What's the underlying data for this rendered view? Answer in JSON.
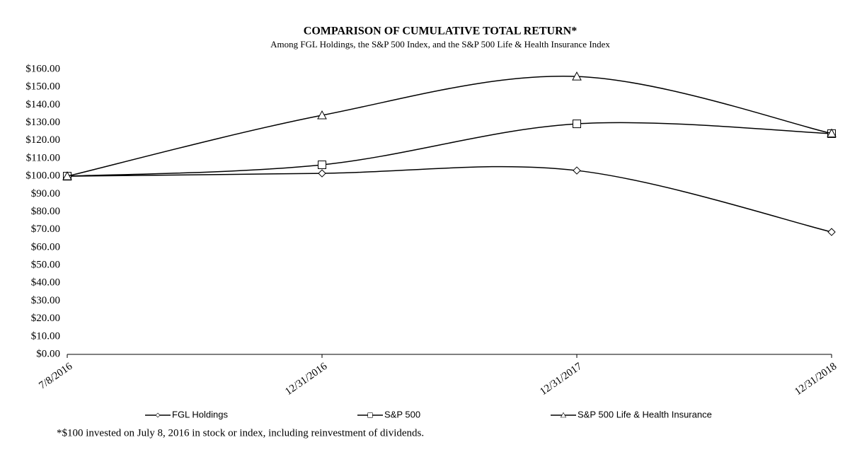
{
  "chart_data": {
    "type": "line",
    "title": "COMPARISON OF CUMULATIVE TOTAL RETURN*",
    "subtitle": "Among FGL Holdings,  the S&P 500 Index, and the S&P 500 Life & Health Insurance Index",
    "footnote": "*$100 invested on July 8, 2016 in stock or index, including reinvestment of dividends.",
    "categories": [
      "7/8/2016",
      "12/31/2016",
      "12/31/2017",
      "12/31/2018"
    ],
    "series": [
      {
        "name": "FGL Holdings",
        "color": "#000000",
        "marker": "diamond",
        "values": [
          100,
          101.6,
          103.2,
          68.7
        ]
      },
      {
        "name": "S&P 500",
        "color": "#000000",
        "marker": "square",
        "values": [
          100,
          106.4,
          129.4,
          123.9
        ]
      },
      {
        "name": "S&P 500 Life & Health Insurance",
        "color": "#000000",
        "marker": "triangle",
        "values": [
          100,
          134.2,
          156.0,
          124.0
        ]
      }
    ],
    "ylim": [
      0,
      160
    ],
    "yticks": [
      {
        "value": 0,
        "label": "$0.00"
      },
      {
        "value": 10,
        "label": "$10.00"
      },
      {
        "value": 20,
        "label": "$20.00"
      },
      {
        "value": 30,
        "label": "$30.00"
      },
      {
        "value": 40,
        "label": "$40.00"
      },
      {
        "value": 50,
        "label": "$50.00"
      },
      {
        "value": 60,
        "label": "$60.00"
      },
      {
        "value": 70,
        "label": "$70.00"
      },
      {
        "value": 80,
        "label": "$80.00"
      },
      {
        "value": 90,
        "label": "$90.00"
      },
      {
        "value": 100,
        "label": "$100.00"
      },
      {
        "value": 110,
        "label": "$110.00"
      },
      {
        "value": 120,
        "label": "$120.00"
      },
      {
        "value": 130,
        "label": "$130.00"
      },
      {
        "value": 140,
        "label": "$140.00"
      },
      {
        "value": 150,
        "label": "$150.00"
      },
      {
        "value": 160,
        "label": "$160.00"
      }
    ],
    "grid": false,
    "legend": "bottom"
  }
}
